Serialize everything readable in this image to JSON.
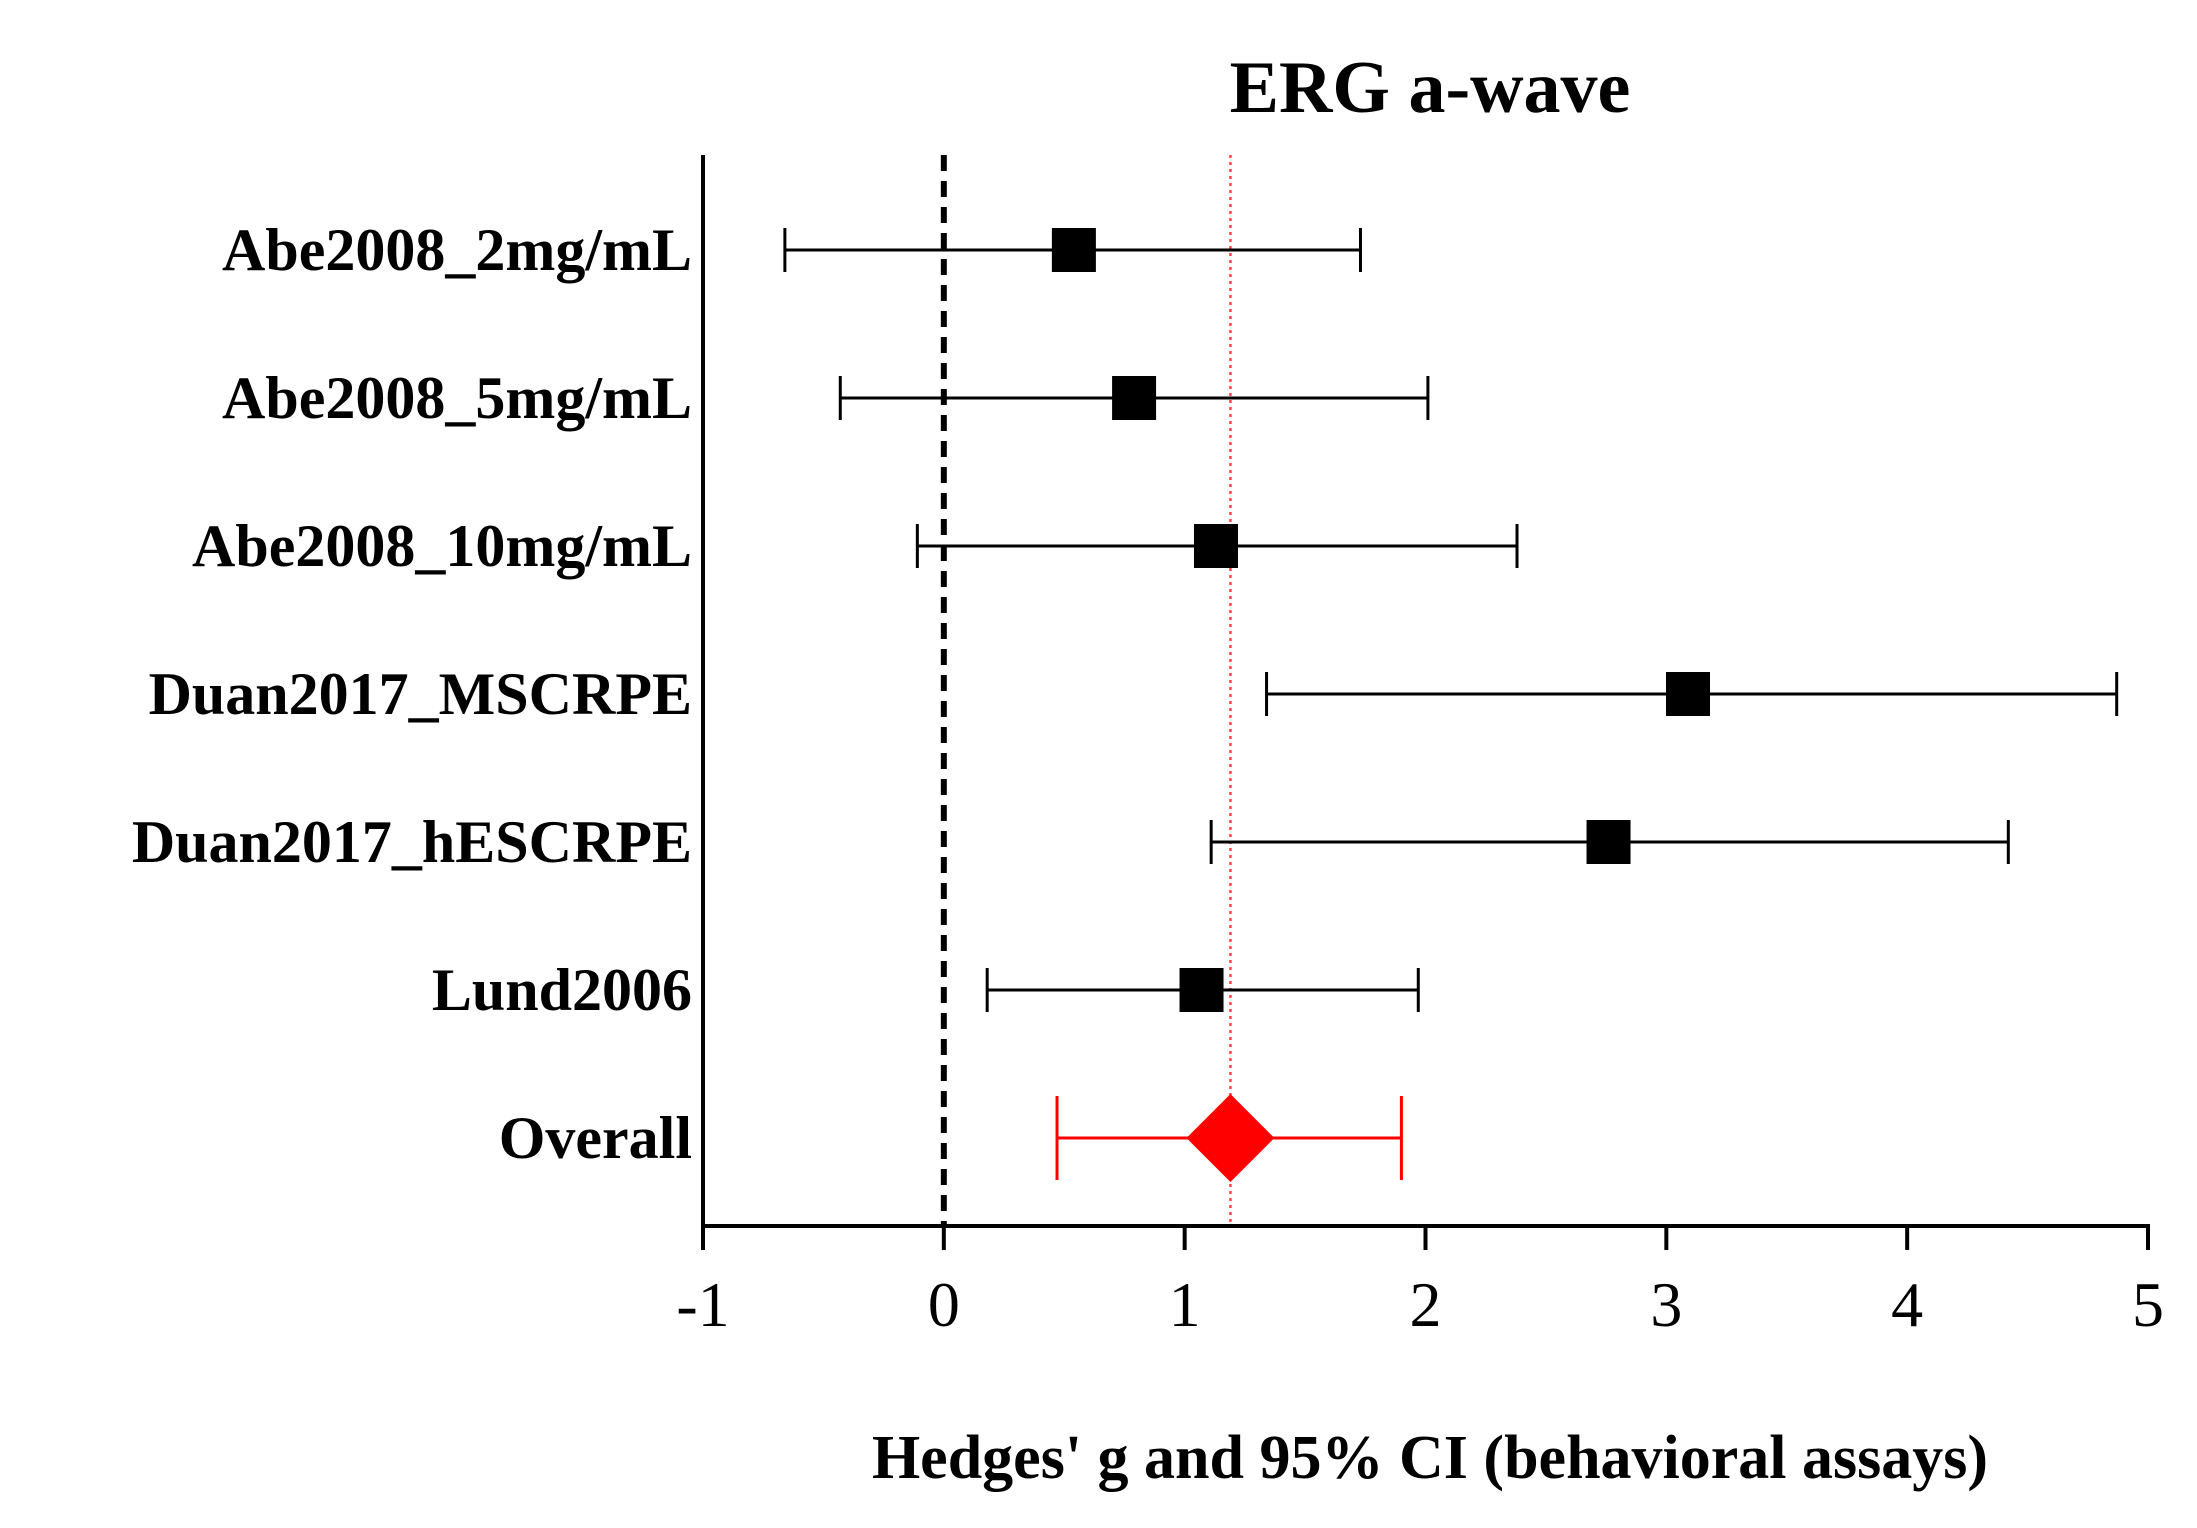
{
  "chart_data": {
    "type": "forest",
    "title": "ERG a-wave",
    "xlabel": "Hedges' g and 95% CI (behavioral assays)",
    "xlim": [
      -1,
      5
    ],
    "xticks": [
      -1,
      0,
      1,
      2,
      3,
      4,
      5
    ],
    "tick_labels": [
      "-1",
      "0",
      "1",
      "2",
      "3",
      "4",
      "5"
    ],
    "reference_line": 0,
    "overall_line": 1.19,
    "studies": [
      {
        "label": "Abe2008_2mg/mL",
        "estimate": 0.54,
        "lower": -0.66,
        "upper": 1.73
      },
      {
        "label": "Abe2008_5mg/mL",
        "estimate": 0.79,
        "lower": -0.43,
        "upper": 2.01
      },
      {
        "label": "Abe2008_10mg/mL",
        "estimate": 1.13,
        "lower": -0.11,
        "upper": 2.38
      },
      {
        "label": "Duan2017_MSCRPE",
        "estimate": 3.09,
        "lower": 1.34,
        "upper": 4.87
      },
      {
        "label": "Duan2017_hESCRPE",
        "estimate": 2.76,
        "lower": 1.11,
        "upper": 4.42
      },
      {
        "label": "Lund2006",
        "estimate": 1.07,
        "lower": 0.18,
        "upper": 1.97
      }
    ],
    "overall": {
      "label": "Overall",
      "estimate": 1.19,
      "lower": 0.47,
      "upper": 1.9
    },
    "colors": {
      "study": "#000000",
      "overall": "#ff0000",
      "overall_line": "#ff4444"
    }
  }
}
